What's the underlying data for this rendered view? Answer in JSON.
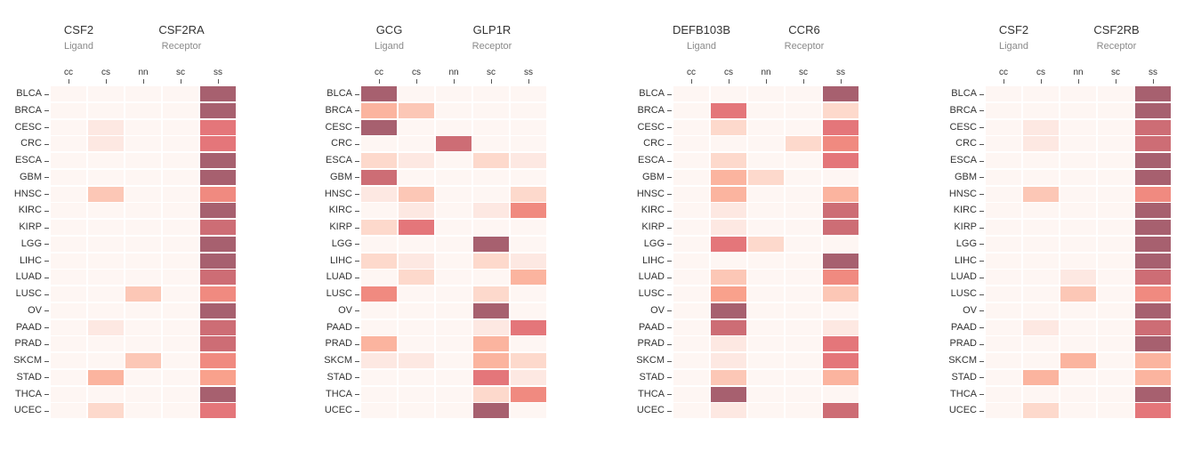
{
  "chart_data": [
    {
      "type": "heatmap",
      "ligand": {
        "name": "CSF2",
        "role": "Ligand"
      },
      "receptor": {
        "name": "CSF2RA",
        "role": "Receptor"
      },
      "columns": [
        "cc",
        "cs",
        "nn",
        "sc",
        "ss"
      ],
      "rows": [
        "BLCA",
        "BRCA",
        "CESC",
        "CRC",
        "ESCA",
        "GBM",
        "HNSC",
        "KIRC",
        "KIRP",
        "LGG",
        "LIHC",
        "LUAD",
        "LUSC",
        "OV",
        "PAAD",
        "PRAD",
        "SKCM",
        "STAD",
        "THCA",
        "UCEC"
      ],
      "values": [
        [
          0,
          0,
          0,
          0,
          9
        ],
        [
          0,
          0,
          0,
          0,
          9
        ],
        [
          0,
          1,
          0,
          0,
          7
        ],
        [
          0,
          1,
          0,
          0,
          7
        ],
        [
          0,
          0,
          0,
          0,
          9
        ],
        [
          0,
          0,
          0,
          0,
          9
        ],
        [
          0,
          3,
          0,
          0,
          6
        ],
        [
          0,
          0,
          0,
          0,
          9
        ],
        [
          0,
          0,
          0,
          0,
          8
        ],
        [
          0,
          0,
          0,
          0,
          9
        ],
        [
          0,
          0,
          0,
          0,
          9
        ],
        [
          0,
          0,
          0,
          0,
          8
        ],
        [
          0,
          0,
          3,
          0,
          6
        ],
        [
          0,
          0,
          0,
          0,
          9
        ],
        [
          0,
          1,
          0,
          0,
          8
        ],
        [
          0,
          0,
          0,
          0,
          8
        ],
        [
          0,
          0,
          3,
          0,
          6
        ],
        [
          0,
          4,
          0,
          0,
          5
        ],
        [
          0,
          0,
          0,
          0,
          9
        ],
        [
          0,
          2,
          0,
          0,
          7
        ]
      ]
    },
    {
      "type": "heatmap",
      "ligand": {
        "name": "GCG",
        "role": "Ligand"
      },
      "receptor": {
        "name": "GLP1R",
        "role": "Receptor"
      },
      "columns": [
        "cc",
        "cs",
        "nn",
        "sc",
        "ss"
      ],
      "rows": [
        "BLCA",
        "BRCA",
        "CESC",
        "CRC",
        "ESCA",
        "GBM",
        "HNSC",
        "KIRC",
        "KIRP",
        "LGG",
        "LIHC",
        "LUAD",
        "LUSC",
        "OV",
        "PAAD",
        "PRAD",
        "SKCM",
        "STAD",
        "THCA",
        "UCEC"
      ],
      "values": [
        [
          9,
          0,
          0,
          0,
          0
        ],
        [
          4,
          3,
          0,
          0,
          0
        ],
        [
          9,
          0,
          0,
          0,
          0
        ],
        [
          0,
          0,
          8,
          0,
          0
        ],
        [
          2,
          1,
          0,
          2,
          1
        ],
        [
          8,
          0,
          0,
          0,
          0
        ],
        [
          1,
          3,
          0,
          0,
          2
        ],
        [
          0,
          1,
          0,
          1,
          6
        ],
        [
          2,
          7,
          0,
          0,
          0
        ],
        [
          0,
          0,
          0,
          9,
          0
        ],
        [
          2,
          1,
          0,
          2,
          1
        ],
        [
          0,
          2,
          0,
          0,
          4
        ],
        [
          6,
          0,
          0,
          2,
          0
        ],
        [
          0,
          0,
          0,
          9,
          0
        ],
        [
          0,
          0,
          0,
          1,
          7
        ],
        [
          4,
          0,
          0,
          4,
          0
        ],
        [
          1,
          1,
          0,
          4,
          2
        ],
        [
          0,
          0,
          0,
          7,
          1
        ],
        [
          0,
          0,
          0,
          2,
          6
        ],
        [
          0,
          0,
          0,
          9,
          0
        ]
      ]
    },
    {
      "type": "heatmap",
      "ligand": {
        "name": "DEFB103B",
        "role": "Ligand"
      },
      "receptor": {
        "name": "CCR6",
        "role": "Receptor"
      },
      "columns": [
        "cc",
        "cs",
        "nn",
        "sc",
        "ss"
      ],
      "rows": [
        "BLCA",
        "BRCA",
        "CESC",
        "CRC",
        "ESCA",
        "GBM",
        "HNSC",
        "KIRC",
        "KIRP",
        "LGG",
        "LIHC",
        "LUAD",
        "LUSC",
        "OV",
        "PAAD",
        "PRAD",
        "SKCM",
        "STAD",
        "THCA",
        "UCEC"
      ],
      "values": [
        [
          0,
          0,
          0,
          0,
          9
        ],
        [
          0,
          7,
          0,
          0,
          2
        ],
        [
          0,
          2,
          0,
          0,
          7
        ],
        [
          0,
          0,
          0,
          2,
          6
        ],
        [
          0,
          2,
          0,
          0,
          7
        ],
        [
          0,
          4,
          2,
          0,
          0
        ],
        [
          0,
          4,
          0,
          0,
          4
        ],
        [
          0,
          1,
          0,
          0,
          8
        ],
        [
          0,
          1,
          0,
          0,
          8
        ],
        [
          0,
          7,
          2,
          0,
          0
        ],
        [
          0,
          0,
          0,
          0,
          9
        ],
        [
          0,
          3,
          0,
          0,
          6
        ],
        [
          0,
          5,
          0,
          0,
          3
        ],
        [
          0,
          9,
          0,
          0,
          0
        ],
        [
          0,
          8,
          0,
          0,
          1
        ],
        [
          0,
          1,
          0,
          0,
          7
        ],
        [
          0,
          1,
          0,
          0,
          7
        ],
        [
          0,
          3,
          0,
          0,
          4
        ],
        [
          0,
          9,
          0,
          0,
          0
        ],
        [
          0,
          1,
          0,
          0,
          8
        ]
      ]
    },
    {
      "type": "heatmap",
      "ligand": {
        "name": "CSF2",
        "role": "Ligand"
      },
      "receptor": {
        "name": "CSF2RB",
        "role": "Receptor"
      },
      "columns": [
        "cc",
        "cs",
        "nn",
        "sc",
        "ss"
      ],
      "rows": [
        "BLCA",
        "BRCA",
        "CESC",
        "CRC",
        "ESCA",
        "GBM",
        "HNSC",
        "KIRC",
        "KIRP",
        "LGG",
        "LIHC",
        "LUAD",
        "LUSC",
        "OV",
        "PAAD",
        "PRAD",
        "SKCM",
        "STAD",
        "THCA",
        "UCEC"
      ],
      "values": [
        [
          0,
          0,
          0,
          0,
          9
        ],
        [
          0,
          0,
          0,
          0,
          9
        ],
        [
          0,
          1,
          0,
          0,
          8
        ],
        [
          0,
          1,
          0,
          0,
          8
        ],
        [
          0,
          0,
          0,
          0,
          9
        ],
        [
          0,
          0,
          0,
          0,
          9
        ],
        [
          0,
          3,
          0,
          0,
          6
        ],
        [
          0,
          0,
          0,
          0,
          9
        ],
        [
          0,
          0,
          0,
          0,
          9
        ],
        [
          0,
          0,
          0,
          0,
          9
        ],
        [
          0,
          0,
          0,
          0,
          9
        ],
        [
          0,
          0,
          1,
          0,
          8
        ],
        [
          0,
          0,
          3,
          0,
          6
        ],
        [
          0,
          0,
          0,
          0,
          9
        ],
        [
          0,
          1,
          0,
          0,
          8
        ],
        [
          0,
          0,
          0,
          0,
          9
        ],
        [
          0,
          0,
          4,
          0,
          4
        ],
        [
          0,
          4,
          0,
          0,
          4
        ],
        [
          0,
          0,
          0,
          0,
          9
        ],
        [
          0,
          2,
          0,
          0,
          7
        ]
      ]
    }
  ],
  "colors": {
    "scale": [
      "#fef6f3",
      "#fde8e2",
      "#fdd9cc",
      "#fcc7b6",
      "#fbb49f",
      "#f9a18c",
      "#f08a80",
      "#e4767a",
      "#cd6d75",
      "#a7606f"
    ]
  }
}
